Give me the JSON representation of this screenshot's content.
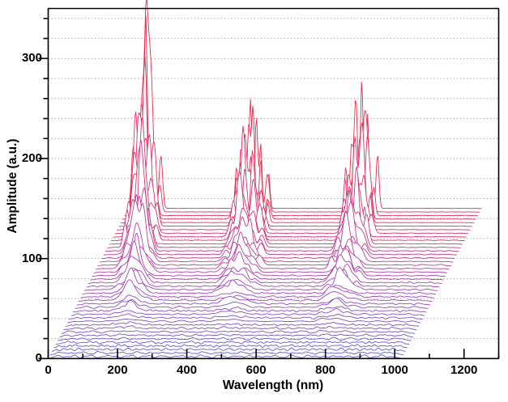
{
  "chart_data": {
    "type": "line-waterfall",
    "title": "",
    "xlabel": "Wavelength (nm)",
    "ylabel": "Amplitude (a.u.)",
    "x_range": [
      0,
      1300
    ],
    "y_range": [
      0,
      350
    ],
    "x_major_ticks": [
      0,
      200,
      400,
      600,
      800,
      1000,
      1200
    ],
    "x_minor_step": 100,
    "y_major_ticks": [
      0,
      100,
      200,
      300
    ],
    "y_minor_step": 20,
    "grid": {
      "horizontal_step": 20,
      "style": "dotted",
      "color": "#9e9e9e"
    },
    "frame_color": "#000000",
    "background": "#ffffff",
    "waterfall": {
      "n_traces": 43,
      "trace_x_span_nm": 1020,
      "x_offset_per_trace_nm": 5.5,
      "y_offset_per_trace": 3.5714,
      "points_per_trace": 345,
      "seed": 20240917,
      "noise_amplitude_bottom": 4.3,
      "noise_amplitude_top": 0.35,
      "growth_exponent": 3,
      "color_stops": [
        [
          0,
          "#5b5be0"
        ],
        [
          0.5,
          "#a844b4"
        ],
        [
          1,
          "#ee2b4e"
        ]
      ],
      "peak_clusters": [
        {
          "name": "cluster-290nm",
          "center_nm_bottom": 215,
          "center_nm_top": 285,
          "max_height": 170,
          "subpeak_offsets": [
            -38,
            -20,
            -6,
            5,
            18,
            36
          ],
          "subpeak_heights": [
            0.35,
            0.6,
            1.0,
            0.75,
            0.5,
            0.3
          ]
        },
        {
          "name": "cluster-600nm",
          "center_nm_bottom": 505,
          "center_nm_top": 590,
          "max_height": 105,
          "subpeak_offsets": [
            -45,
            -25,
            -8,
            8,
            26,
            45
          ],
          "subpeak_heights": [
            0.4,
            0.7,
            1.0,
            0.85,
            0.6,
            0.35
          ]
        },
        {
          "name": "cluster-900nm",
          "center_nm_bottom": 795,
          "center_nm_top": 910,
          "max_height": 135,
          "subpeak_offsets": [
            -40,
            -18,
            0,
            15,
            35
          ],
          "subpeak_heights": [
            0.45,
            0.8,
            1.0,
            0.7,
            0.4
          ]
        }
      ]
    }
  }
}
